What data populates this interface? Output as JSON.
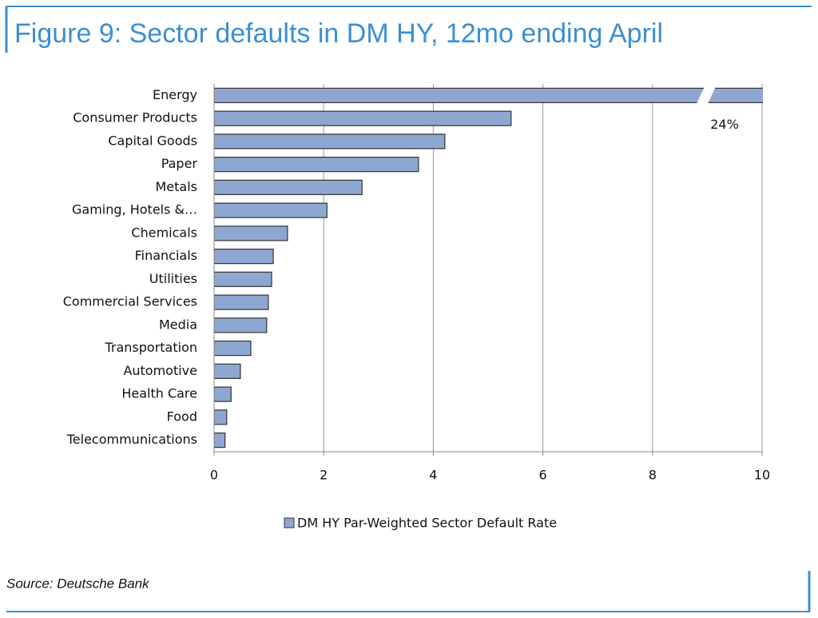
{
  "chart_data": {
    "type": "bar",
    "orientation": "horizontal",
    "title": "Figure 9: Sector defaults in DM HY, 12mo ending April",
    "source": "Source: Deutsche Bank",
    "categories": [
      "Energy",
      "Consumer Products",
      "Capital Goods",
      "Paper",
      "Metals",
      "Gaming, Hotels &…",
      "Chemicals",
      "Financials",
      "Utilities",
      "Commercial Services",
      "Media",
      "Transportation",
      "Automotive",
      "Health Care",
      "Food",
      "Telecommunications"
    ],
    "series": [
      {
        "name": "DM HY Par-Weighted Sector Default Rate",
        "color": "#8ea7d1",
        "values": [
          24,
          5.42,
          4.21,
          3.73,
          2.7,
          2.06,
          1.34,
          1.08,
          1.05,
          0.99,
          0.96,
          0.67,
          0.48,
          0.31,
          0.23,
          0.2
        ],
        "value_labels": [
          "24%",
          null,
          null,
          null,
          null,
          null,
          null,
          null,
          null,
          null,
          null,
          null,
          null,
          null,
          null,
          null
        ]
      }
    ],
    "xlim": [
      0,
      10
    ],
    "xticks": [
      0,
      2,
      4,
      6,
      8,
      10
    ],
    "grid": true,
    "legend": "bottom"
  }
}
